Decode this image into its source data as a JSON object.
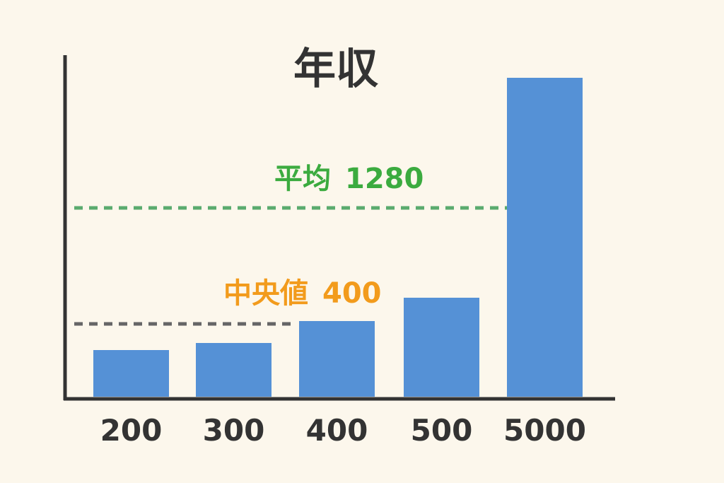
{
  "chart_data": {
    "type": "bar",
    "title": "年収",
    "categories": [
      "200",
      "300",
      "400",
      "500",
      "5000"
    ],
    "values": [
      200,
      300,
      400,
      500,
      5000
    ],
    "ylim": [
      0,
      5000
    ],
    "grid": false,
    "reference_lines": [
      {
        "name": "mean",
        "label": "平均",
        "value": 1280,
        "color": "#5aab6e",
        "label_color": "#3bab3f",
        "style": "dashed"
      },
      {
        "name": "median",
        "label": "中央値",
        "value": 400,
        "color": "#666666",
        "label_color": "#f29b1c",
        "style": "dashed"
      }
    ]
  },
  "colors": {
    "background": "#fcf7ec",
    "bar": "#5591d6",
    "axis": "#333333",
    "text": "#333333"
  }
}
